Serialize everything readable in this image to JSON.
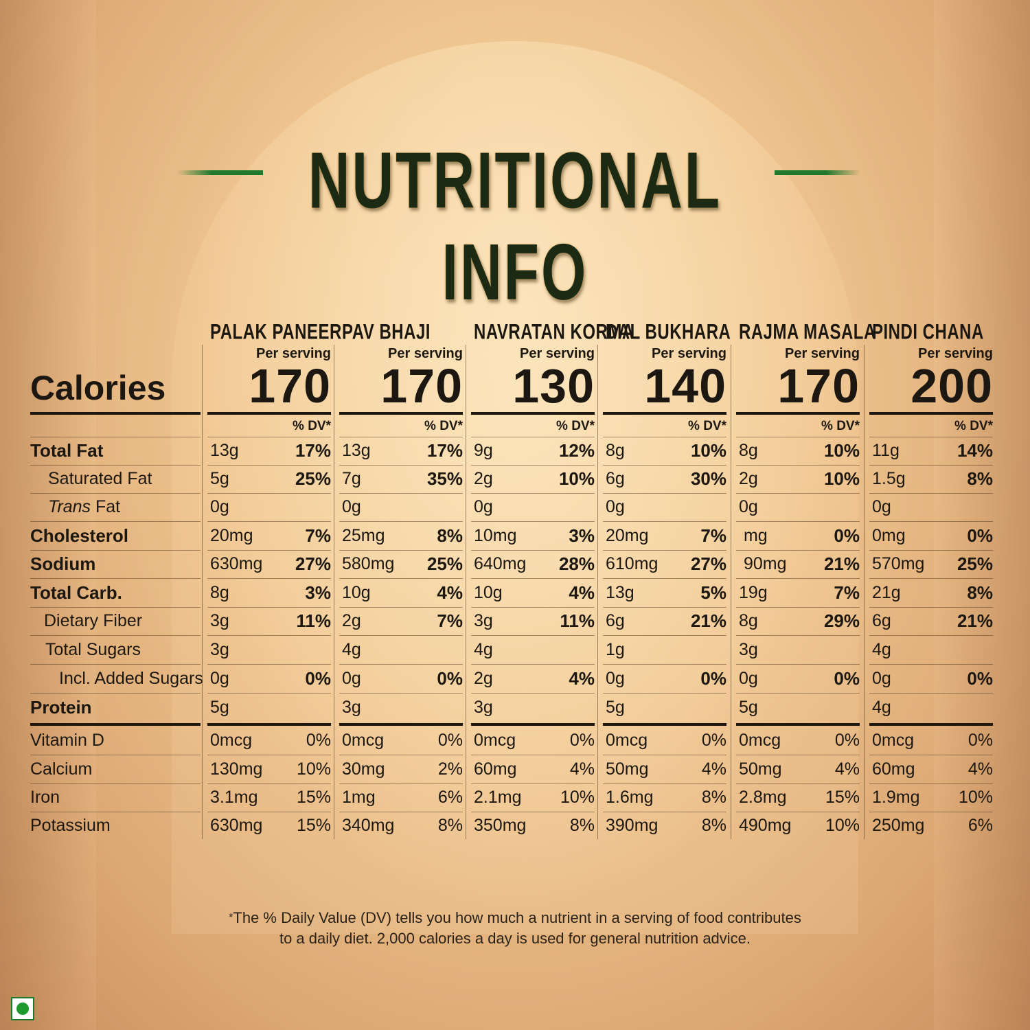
{
  "title": "NUTRITIONAL INFO",
  "calories_label": "Calories",
  "per_serving_label": "Per serving",
  "dv_label": "% DV*",
  "rows": [
    {
      "label": "Total Fat"
    },
    {
      "label": "Saturated Fat"
    },
    {
      "label": "Trans",
      "label_suffix": " Fat"
    },
    {
      "label": "Cholesterol"
    },
    {
      "label": "Sodium"
    },
    {
      "label": "Total Carb."
    },
    {
      "label": "Dietary Fiber"
    },
    {
      "label": "Total Sugars"
    },
    {
      "label": "Incl. Added Sugars"
    },
    {
      "label": "Protein"
    },
    {
      "label": "Vitamin D"
    },
    {
      "label": "Calcium"
    },
    {
      "label": "Iron"
    },
    {
      "label": "Potassium"
    }
  ],
  "products": [
    {
      "name": "PALAK PANEER",
      "calories": "170",
      "amounts": [
        "13g",
        "5g",
        "0g",
        "20mg",
        "630mg",
        "8g",
        "3g",
        "3g",
        "0g",
        "5g",
        "0mcg",
        "130mg",
        "3.1mg",
        "630mg"
      ],
      "dv": [
        "17%",
        "25%",
        "",
        "7%",
        "27%",
        "3%",
        "11%",
        "",
        "0%",
        "",
        "0%",
        "10%",
        "15%",
        "15%"
      ]
    },
    {
      "name": "PAV BHAJI",
      "calories": "170",
      "amounts": [
        "13g",
        "7g",
        "0g",
        "25mg",
        "580mg",
        "10g",
        "2g",
        "4g",
        "0g",
        "3g",
        "0mcg",
        "30mg",
        "1mg",
        "340mg"
      ],
      "dv": [
        "17%",
        "35%",
        "",
        "8%",
        "25%",
        "4%",
        "7%",
        "",
        "0%",
        "",
        "0%",
        "2%",
        "6%",
        "8%"
      ]
    },
    {
      "name": "NAVRATAN KORMA",
      "calories": "130",
      "amounts": [
        "9g",
        "2g",
        "0g",
        "10mg",
        "640mg",
        "10g",
        "3g",
        "4g",
        "2g",
        "3g",
        "0mcg",
        "60mg",
        "2.1mg",
        "350mg"
      ],
      "dv": [
        "12%",
        "10%",
        "",
        "3%",
        "28%",
        "4%",
        "11%",
        "",
        "4%",
        "",
        "0%",
        "4%",
        "10%",
        "8%"
      ]
    },
    {
      "name": "DAL BUKHARA",
      "calories": "140",
      "amounts": [
        "8g",
        "6g",
        "0g",
        "20mg",
        "610mg",
        "13g",
        "6g",
        "1g",
        "0g",
        "5g",
        "0mcg",
        "50mg",
        "1.6mg",
        "390mg"
      ],
      "dv": [
        "10%",
        "30%",
        "",
        "7%",
        "27%",
        "5%",
        "21%",
        "",
        "0%",
        "",
        "0%",
        "4%",
        "8%",
        "8%"
      ]
    },
    {
      "name": "RAJMA MASALA",
      "calories": "170",
      "amounts": [
        "8g",
        "2g",
        "0g",
        " mg",
        " 90mg",
        "19g",
        "8g",
        "3g",
        "0g",
        "5g",
        "0mcg",
        "50mg",
        "2.8mg",
        "490mg"
      ],
      "dv": [
        "10%",
        "10%",
        "",
        "0%",
        "21%",
        "7%",
        "29%",
        "",
        "0%",
        "",
        "0%",
        "4%",
        "15%",
        "10%"
      ]
    },
    {
      "name": "PINDI CHANA",
      "calories": "200",
      "amounts": [
        "11g",
        "1.5g",
        "0g",
        "0mg",
        "570mg",
        "21g",
        "6g",
        "4g",
        "0g",
        "4g",
        "0mcg",
        "60mg",
        "1.9mg",
        "250mg"
      ],
      "dv": [
        "14%",
        "8%",
        "",
        "0%",
        "25%",
        "8%",
        "21%",
        "",
        "0%",
        "",
        "0%",
        "4%",
        "10%",
        "6%"
      ]
    }
  ],
  "footnote_mark": "*",
  "footnote_line1": "The % Daily Value (DV) tells you how much a nutrient in a serving of food contributes",
  "footnote_line2": "to a daily diet. 2,000 calories a day is used for general nutrition advice.",
  "colors": {
    "accent_green": "#1f7a2e",
    "text": "#1c1710",
    "veg_mark": "#1d9a2e"
  },
  "icons": {
    "veg_symbol": "veg-mark-icon"
  }
}
